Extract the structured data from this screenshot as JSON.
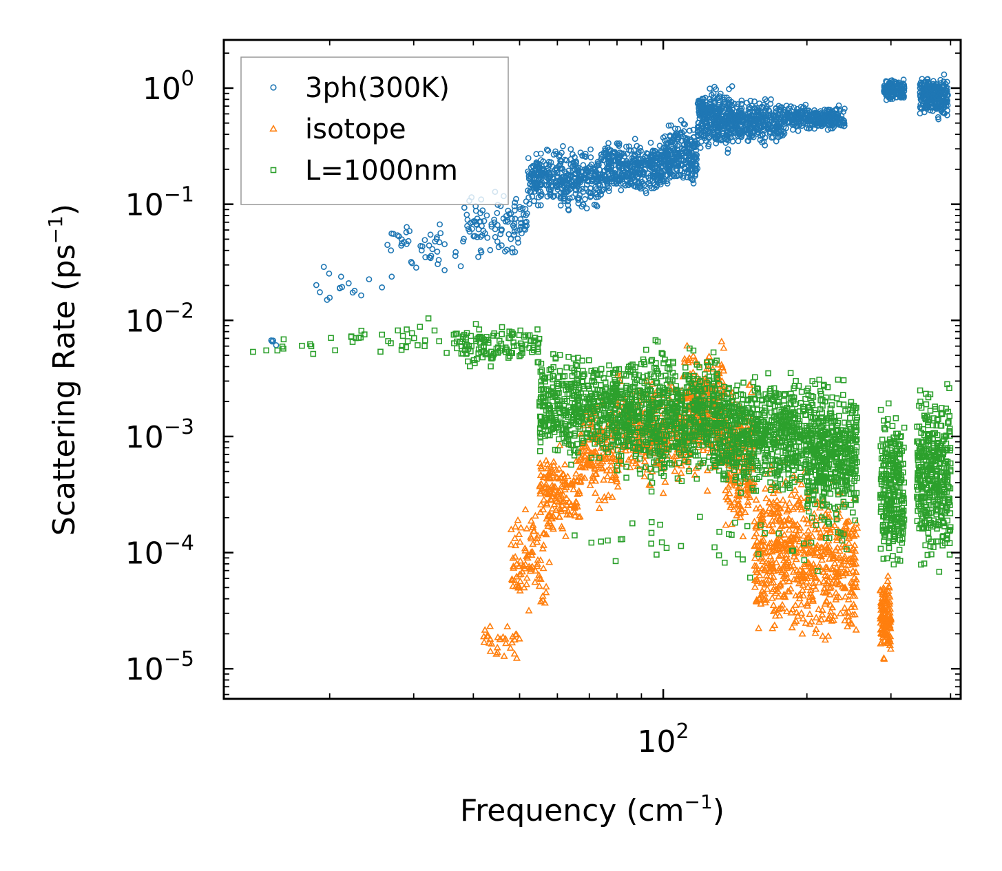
{
  "chart_data": {
    "type": "scatter",
    "xscale": "log",
    "yscale": "log",
    "xlim": [
      12,
      420
    ],
    "ylim": [
      5.5e-06,
      2.6
    ],
    "xlabel": "Frequency (cm",
    "ylabel": "Scattering Rate (ps",
    "label_exponent": "−1",
    "label_close": ")",
    "x_ticks": [
      {
        "value": 100,
        "base": "10",
        "exp": "2"
      }
    ],
    "y_ticks": [
      {
        "value": 1,
        "base": "10",
        "exp": "0"
      },
      {
        "value": 0.1,
        "base": "10",
        "exp": "−1"
      },
      {
        "value": 0.01,
        "base": "10",
        "exp": "−2"
      },
      {
        "value": 0.001,
        "base": "10",
        "exp": "−3"
      },
      {
        "value": 0.0001,
        "base": "10",
        "exp": "−4"
      },
      {
        "value": 1e-05,
        "base": "10",
        "exp": "−5"
      }
    ],
    "legend_position": "top-left",
    "series": [
      {
        "name": "3ph(300K)",
        "marker": "circle",
        "color": "#1f77b4",
        "segments": [
          {
            "x": [
              13.5,
              16
            ],
            "y": [
              0.0055,
              0.0075
            ],
            "n": 4
          },
          {
            "x": [
              18,
              26
            ],
            "y": [
              0.011,
              0.035
            ],
            "n": 16
          },
          {
            "x": [
              26,
              38
            ],
            "y": [
              0.02,
              0.08
            ],
            "n": 45
          },
          {
            "x": [
              38,
              52
            ],
            "y": [
              0.03,
              0.15
            ],
            "n": 110
          },
          {
            "x": [
              52,
              75
            ],
            "y": [
              0.08,
              0.35
            ],
            "n": 380
          },
          {
            "x": [
              75,
              100
            ],
            "y": [
              0.1,
              0.4
            ],
            "n": 350
          },
          {
            "x": [
              100,
              118
            ],
            "y": [
              0.12,
              0.6
            ],
            "n": 260
          },
          {
            "x": [
              118,
              140
            ],
            "y": [
              0.25,
              1.2
            ],
            "n": 320
          },
          {
            "x": [
              140,
              180
            ],
            "y": [
              0.3,
              0.9
            ],
            "n": 300
          },
          {
            "x": [
              180,
              240
            ],
            "y": [
              0.4,
              0.75
            ],
            "n": 260
          },
          {
            "x": [
              290,
              320
            ],
            "y": [
              0.75,
              1.25
            ],
            "n": 150
          },
          {
            "x": [
              345,
              395
            ],
            "y": [
              0.5,
              1.45
            ],
            "n": 260
          }
        ]
      },
      {
        "name": "isotope",
        "marker": "triangle",
        "color": "#ff7f0e",
        "segments": [
          {
            "x": [
              42,
              50
            ],
            "y": [
              1e-05,
              3e-05
            ],
            "n": 30
          },
          {
            "x": [
              48,
              58
            ],
            "y": [
              2.5e-05,
              0.0003
            ],
            "n": 90
          },
          {
            "x": [
              55,
              67
            ],
            "y": [
              0.0001,
              0.001
            ],
            "n": 160
          },
          {
            "x": [
              67,
              80
            ],
            "y": [
              0.0002,
              0.003
            ],
            "n": 150
          },
          {
            "x": [
              80,
              110
            ],
            "y": [
              0.0003,
              0.004
            ],
            "n": 280
          },
          {
            "x": [
              110,
              135
            ],
            "y": [
              0.0003,
              0.008
            ],
            "n": 300
          },
          {
            "x": [
              135,
              155
            ],
            "y": [
              0.0001,
              0.004
            ],
            "n": 200
          },
          {
            "x": [
              155,
              195
            ],
            "y": [
              1.2e-05,
              0.001
            ],
            "n": 330
          },
          {
            "x": [
              195,
              255
            ],
            "y": [
              1.2e-05,
              0.0006
            ],
            "n": 320
          },
          {
            "x": [
              285,
              300
            ],
            "y": [
              1e-05,
              8e-05
            ],
            "n": 130
          }
        ]
      },
      {
        "name": "L=1000nm",
        "marker": "square",
        "color": "#2ca02c",
        "segments": [
          {
            "x": [
              13.5,
              20
            ],
            "y": [
              0.0045,
              0.0075
            ],
            "n": 10
          },
          {
            "x": [
              20,
              38
            ],
            "y": [
              0.004,
              0.011
            ],
            "n": 40
          },
          {
            "x": [
              38,
              55
            ],
            "y": [
              0.0035,
              0.01
            ],
            "n": 120
          },
          {
            "x": [
              55,
              80
            ],
            "y": [
              0.0005,
              0.0065
            ],
            "n": 450
          },
          {
            "x": [
              80,
              130
            ],
            "y": [
              0.0003,
              0.008
            ],
            "n": 700
          },
          {
            "x": [
              130,
              200
            ],
            "y": [
              0.00025,
              0.0045
            ],
            "n": 650
          },
          {
            "x": [
              200,
              255
            ],
            "y": [
              0.00012,
              0.0045
            ],
            "n": 480
          },
          {
            "x": [
              285,
              320
            ],
            "y": [
              5e-05,
              0.0025
            ],
            "n": 260
          },
          {
            "x": [
              340,
              400
            ],
            "y": [
              5e-05,
              0.0042
            ],
            "n": 380
          },
          {
            "x": [
              60,
              250
            ],
            "y": [
              5e-05,
              0.0003
            ],
            "n": 45
          }
        ]
      }
    ]
  }
}
